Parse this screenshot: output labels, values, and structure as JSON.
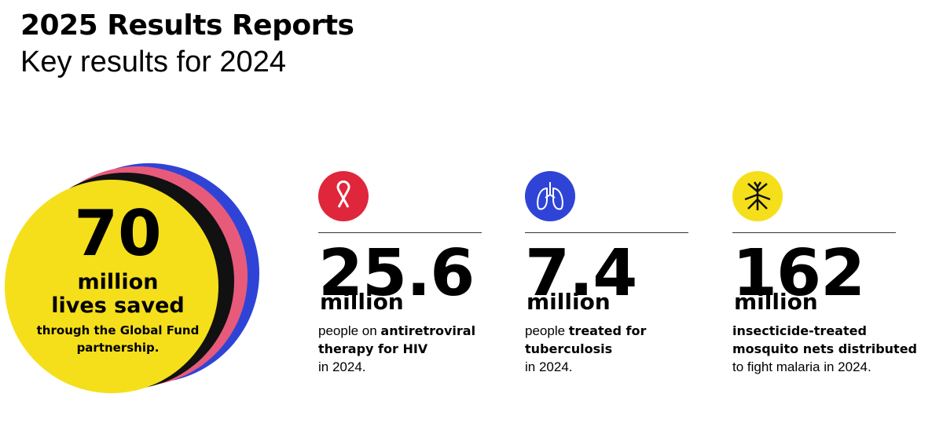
{
  "header": {
    "title": "2025 Results Reports",
    "subtitle": "Key results for 2024"
  },
  "hero": {
    "number": "70",
    "unit": "million",
    "label": "lives saved",
    "description": [
      "through the Global Fund",
      "partnership."
    ]
  },
  "stats": [
    {
      "number": "25.6",
      "unit": "million",
      "lines": [
        [
          {
            "text": "people on ",
            "bold": false
          },
          {
            "text": "antiretroviral",
            "bold": true
          }
        ],
        [
          {
            "text": "therapy for HIV",
            "bold": true
          }
        ],
        [
          {
            "text": "in 2024.",
            "bold": false
          }
        ]
      ]
    },
    {
      "number": "7.4",
      "unit": "million",
      "lines": [
        [
          {
            "text": "people ",
            "bold": false
          },
          {
            "text": "treated for",
            "bold": true
          }
        ],
        [
          {
            "text": "tuberculosis",
            "bold": true
          }
        ],
        [
          {
            "text": "in 2024.",
            "bold": false
          }
        ]
      ]
    },
    {
      "number": "162",
      "unit": "million",
      "lines": [
        [
          {
            "text": "insecticide-treated",
            "bold": true
          }
        ],
        [
          {
            "text": "mosquito nets distributed",
            "bold": true
          }
        ],
        [
          {
            "text": "to fight malaria in 2024.",
            "bold": false
          }
        ]
      ]
    }
  ]
}
